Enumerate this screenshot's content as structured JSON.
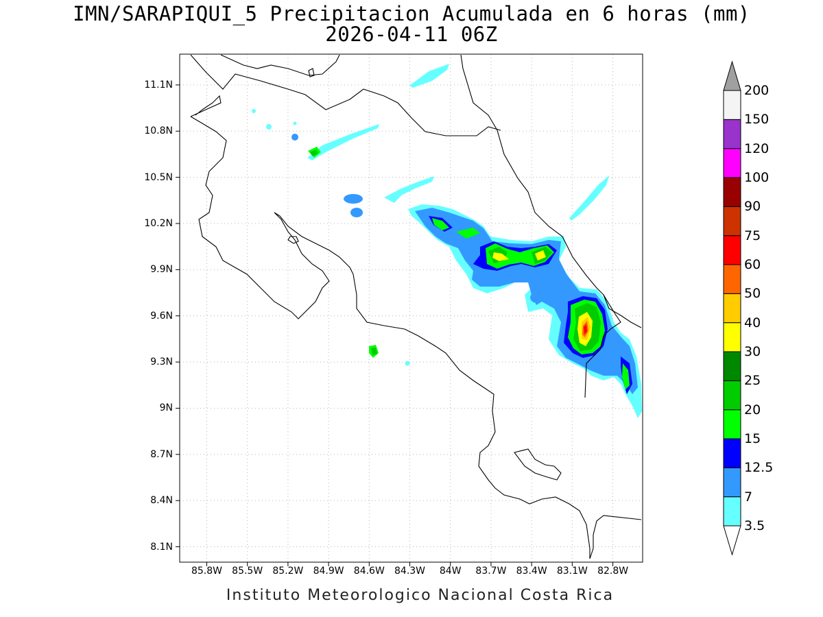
{
  "title": {
    "line1": "IMN/SARAPIQUI_5 Precipitacion Acumulada en 6 horas (mm)",
    "line2": "2026-04-11 06Z"
  },
  "footer": "Instituto Meteorologico Nacional Costa Rica",
  "map": {
    "lon_range": [
      -86.0,
      -82.58
    ],
    "lat_range": [
      8.0,
      11.3
    ],
    "grid": true,
    "lon_ticks": [
      "85.8W",
      "85.5W",
      "85.2W",
      "84.9W",
      "84.6W",
      "84.3W",
      "84W",
      "83.7W",
      "83.4W",
      "83.1W",
      "82.8W"
    ],
    "lat_ticks": [
      "11.1N",
      "10.8N",
      "10.5N",
      "10.2N",
      "9.9N",
      "9.6N",
      "9.3N",
      "9N",
      "8.7N",
      "8.4N",
      "8.1N"
    ]
  },
  "colorbar": {
    "labels": [
      "3.5",
      "7",
      "12.5",
      "15",
      "20",
      "25",
      "30",
      "40",
      "50",
      "60",
      "75",
      "90",
      "100",
      "120",
      "150",
      "200"
    ],
    "colors": [
      "#66ffff",
      "#3399ff",
      "#0000ff",
      "#00ff00",
      "#00cc00",
      "#008800",
      "#ffff00",
      "#ffcc00",
      "#ff6600",
      "#ff0000",
      "#cc3300",
      "#990000",
      "#ff00ff",
      "#9933cc",
      "#f4f4f4",
      "#a0a0a0"
    ]
  }
}
